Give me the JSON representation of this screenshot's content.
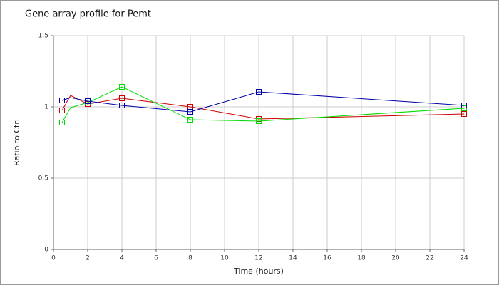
{
  "chart_data": {
    "type": "line",
    "title": "Gene array profile for Pemt",
    "x_label": "Time (hours)",
    "y_label": "Ratio to Ctrl",
    "x": [
      0.5,
      1,
      2,
      4,
      8,
      12,
      24
    ],
    "series": [
      {
        "color": "#cc0000",
        "values": [
          0.975,
          1.08,
          1.02,
          1.06,
          1.0,
          0.915,
          0.95
        ]
      },
      {
        "color": "#00dd00",
        "values": [
          0.89,
          0.995,
          1.03,
          1.14,
          0.91,
          0.9,
          0.99
        ]
      },
      {
        "color": "#0000aa",
        "values": [
          1.045,
          1.065,
          1.04,
          1.01,
          0.965,
          1.105,
          1.01
        ]
      }
    ],
    "xlim": [
      0,
      24
    ],
    "xticks": [
      0,
      2,
      4,
      6,
      8,
      10,
      12,
      14,
      16,
      18,
      20,
      22,
      24
    ],
    "ylim": [
      0,
      1.5
    ],
    "yticks": [
      0,
      0.5,
      1,
      1.5
    ],
    "grid": true
  }
}
